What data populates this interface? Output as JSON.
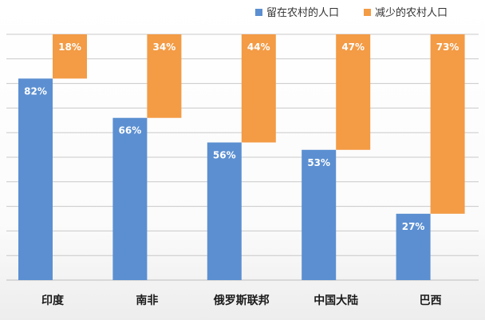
{
  "chart_data": {
    "type": "bar",
    "stacked": true,
    "categories": [
      "印度",
      "南非",
      "俄罗斯联邦",
      "中国大陆",
      "巴西"
    ],
    "series": [
      {
        "name": "留在农村的人口",
        "values": [
          82,
          66,
          56,
          53,
          27
        ],
        "labels": [
          "82%",
          "66%",
          "56%",
          "53%",
          "27%"
        ],
        "color": "#5B8FD1"
      },
      {
        "name": "减少的农村人口",
        "values": [
          18,
          34,
          44,
          47,
          73
        ],
        "labels": [
          "18%",
          "34%",
          "44%",
          "47%",
          "73%"
        ],
        "color": "#F39B45"
      }
    ],
    "ylim": [
      0,
      100
    ],
    "grid": true,
    "legend_position": "top-right"
  },
  "colors": {
    "gridline": "#c9c9c9",
    "axis": "#bdbdbd"
  }
}
